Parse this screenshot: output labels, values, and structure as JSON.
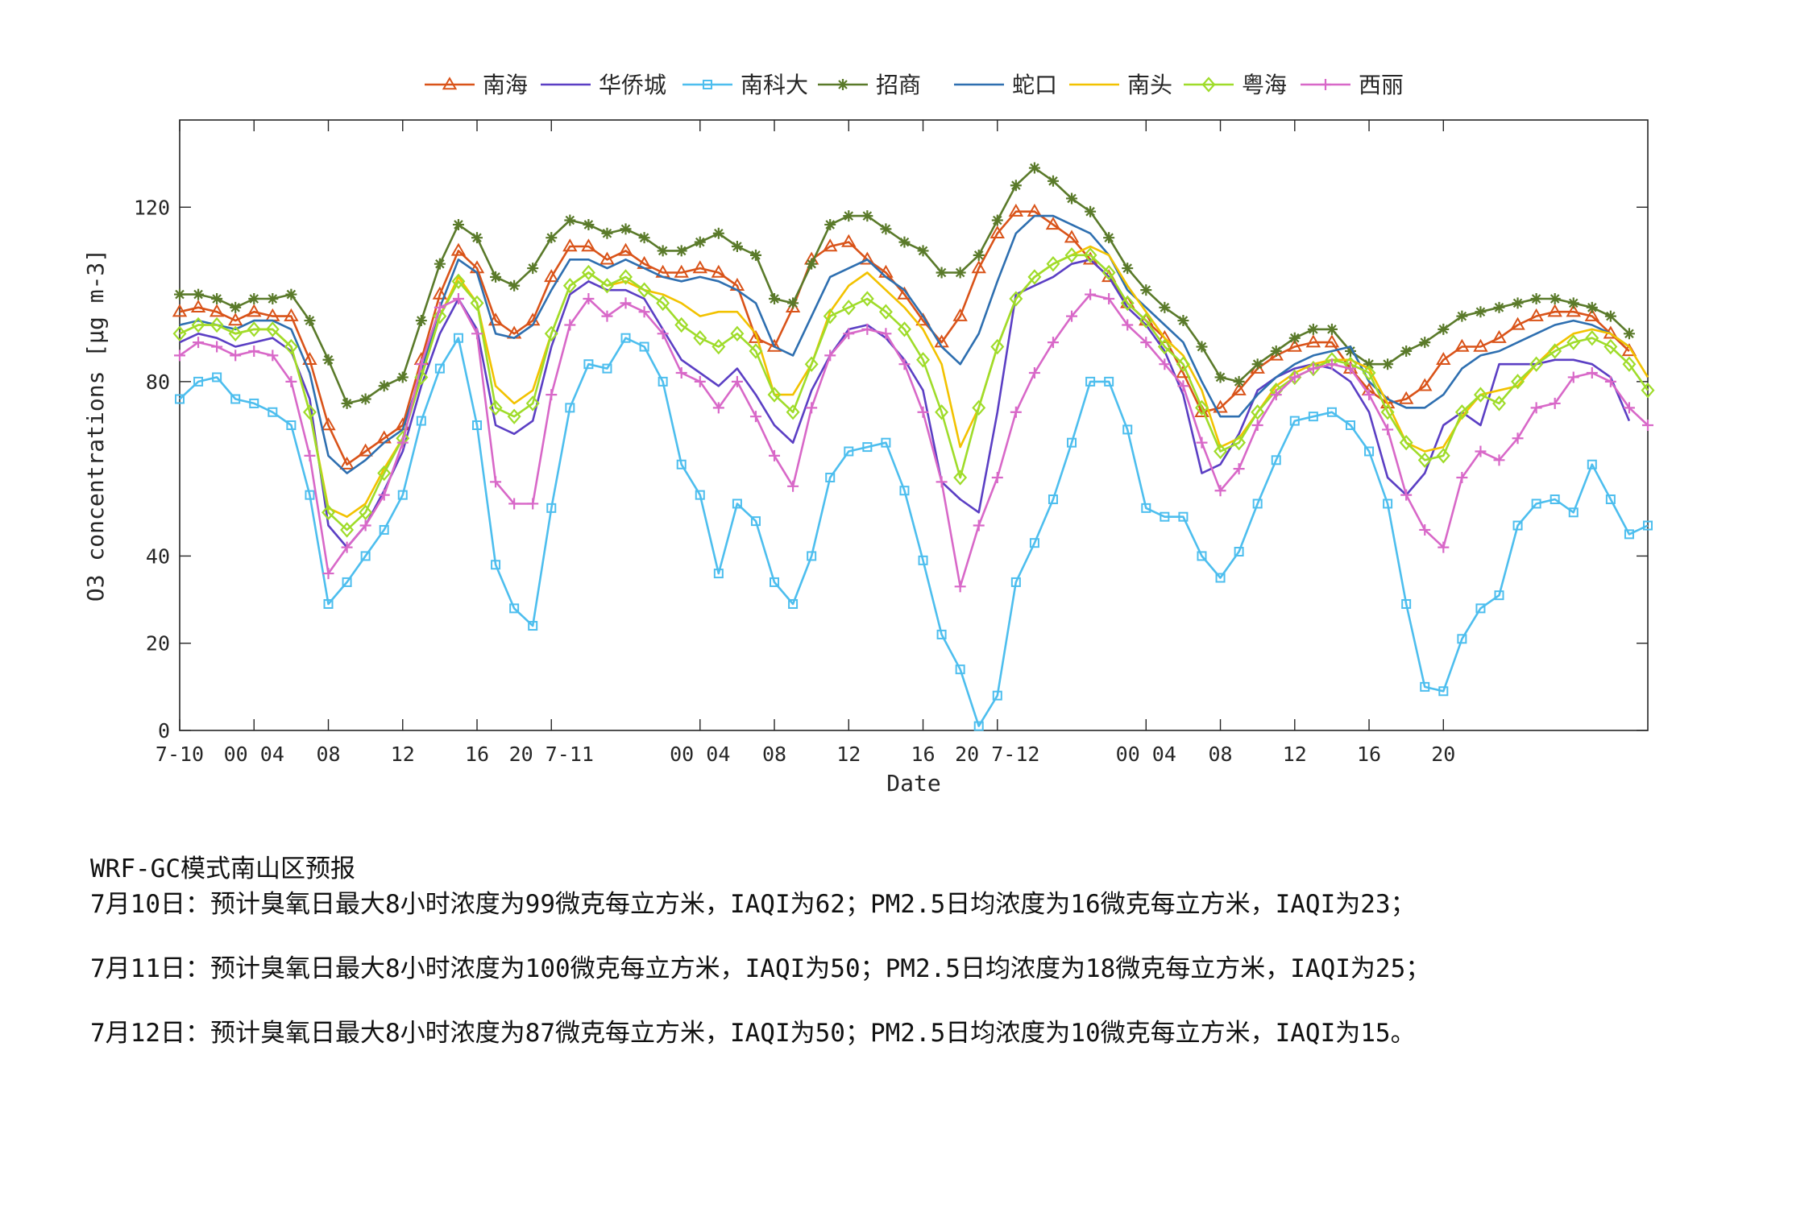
{
  "chart_data": {
    "type": "line",
    "xlabel": "Date",
    "ylabel": "O3 concentrations [μg m-3]",
    "ylim": [
      0,
      140
    ],
    "yticks": [
      0,
      20,
      40,
      80,
      120
    ],
    "x_start": "7-10 00:00",
    "x_step_hours": 1,
    "x_ticks": [
      {
        "hour": 0,
        "label": "7-10"
      },
      {
        "hour": 4,
        "label": "00 04"
      },
      {
        "hour": 8,
        "label": "08"
      },
      {
        "hour": 12,
        "label": "12"
      },
      {
        "hour": 16,
        "label": "16"
      },
      {
        "hour": 20,
        "label": "20 7-11"
      },
      {
        "hour": 28,
        "label": "00 04"
      },
      {
        "hour": 32,
        "label": "08"
      },
      {
        "hour": 36,
        "label": "12"
      },
      {
        "hour": 40,
        "label": "16"
      },
      {
        "hour": 44,
        "label": "20 7-12"
      },
      {
        "hour": 52,
        "label": "00 04"
      },
      {
        "hour": 56,
        "label": "08"
      },
      {
        "hour": 60,
        "label": "12"
      },
      {
        "hour": 64,
        "label": "16"
      },
      {
        "hour": 68,
        "label": "20"
      }
    ],
    "legend_position": "top",
    "series": [
      {
        "name": "南海",
        "color": "#d95319",
        "marker": "triangle",
        "values": [
          96,
          97,
          96,
          94,
          96,
          95,
          95,
          85,
          70,
          61,
          64,
          67,
          70,
          85,
          100,
          110,
          106,
          94,
          91,
          94,
          104,
          111,
          111,
          108,
          110,
          107,
          105,
          105,
          106,
          105,
          102,
          90,
          88,
          97,
          108,
          111,
          112,
          108,
          105,
          100,
          94,
          89,
          95,
          106,
          114,
          119,
          119,
          116,
          113,
          108,
          104,
          98,
          94,
          90,
          82,
          73,
          74,
          78,
          83,
          86,
          88,
          89,
          89,
          83,
          78,
          75,
          76,
          79,
          85,
          88,
          88,
          90,
          93,
          95,
          96,
          96,
          95,
          91,
          87
        ]
      },
      {
        "name": "华侨城",
        "color": "#5b3fc4",
        "marker": "none",
        "values": [
          89,
          91,
          90,
          88,
          89,
          90,
          87,
          76,
          47,
          42,
          47,
          55,
          64,
          79,
          91,
          99,
          92,
          70,
          68,
          71,
          88,
          100,
          103,
          101,
          101,
          99,
          92,
          85,
          82,
          79,
          83,
          77,
          70,
          66,
          78,
          86,
          92,
          93,
          90,
          85,
          78,
          57,
          53,
          50,
          73,
          100,
          102,
          104,
          107,
          108,
          104,
          97,
          93,
          87,
          77,
          59,
          61,
          68,
          78,
          81,
          83,
          84,
          83,
          80,
          73,
          58,
          54,
          59,
          70,
          73,
          70,
          84,
          84,
          84,
          85,
          85,
          84,
          81,
          71
        ]
      },
      {
        "name": "南科大",
        "color": "#4dbeee",
        "marker": "square",
        "values": [
          76,
          80,
          81,
          76,
          75,
          73,
          70,
          54,
          29,
          34,
          40,
          46,
          54,
          71,
          83,
          90,
          70,
          38,
          28,
          24,
          51,
          74,
          84,
          83,
          90,
          88,
          80,
          61,
          54,
          36,
          52,
          48,
          34,
          29,
          40,
          58,
          64,
          65,
          66,
          55,
          39,
          22,
          14,
          1,
          8,
          34,
          43,
          53,
          66,
          80,
          80,
          69,
          51,
          49,
          49,
          40,
          35,
          41,
          52,
          62,
          71,
          72,
          73,
          70,
          64,
          52,
          29,
          10,
          9,
          21,
          28,
          31,
          47,
          52,
          53,
          50,
          61,
          53,
          45,
          47
        ]
      },
      {
        "name": "招商",
        "color": "#5a7a2a",
        "marker": "star",
        "values": [
          100,
          100,
          99,
          97,
          99,
          99,
          100,
          94,
          85,
          75,
          76,
          79,
          81,
          94,
          107,
          116,
          113,
          104,
          102,
          106,
          113,
          117,
          116,
          114,
          115,
          113,
          110,
          110,
          112,
          114,
          111,
          109,
          99,
          98,
          107,
          116,
          118,
          118,
          115,
          112,
          110,
          105,
          105,
          109,
          117,
          125,
          129,
          126,
          122,
          119,
          113,
          106,
          101,
          97,
          94,
          88,
          81,
          80,
          84,
          87,
          90,
          92,
          92,
          87,
          84,
          84,
          87,
          89,
          92,
          95,
          96,
          97,
          98,
          99,
          99,
          98,
          97,
          95,
          91
        ]
      },
      {
        "name": "蛇口",
        "color": "#2e6fb0",
        "marker": "none",
        "values": [
          93,
          94,
          93,
          92,
          94,
          94,
          92,
          82,
          63,
          59,
          62,
          66,
          69,
          82,
          97,
          108,
          105,
          91,
          90,
          93,
          101,
          108,
          108,
          106,
          108,
          106,
          104,
          103,
          104,
          103,
          101,
          98,
          88,
          86,
          95,
          104,
          106,
          108,
          104,
          101,
          95,
          88,
          84,
          91,
          103,
          114,
          118,
          118,
          116,
          114,
          109,
          101,
          97,
          93,
          89,
          80,
          72,
          72,
          77,
          81,
          84,
          86,
          87,
          88,
          80,
          76,
          74,
          74,
          77,
          83,
          86,
          87,
          89,
          91,
          93,
          94,
          93,
          91,
          88
        ]
      },
      {
        "name": "南头",
        "color": "#f2c200",
        "marker": "none",
        "values": [
          91,
          93,
          93,
          91,
          92,
          92,
          88,
          73,
          51,
          49,
          52,
          60,
          67,
          81,
          95,
          104,
          98,
          79,
          75,
          78,
          91,
          102,
          105,
          102,
          103,
          101,
          100,
          98,
          95,
          96,
          96,
          91,
          77,
          77,
          84,
          96,
          102,
          105,
          101,
          97,
          92,
          84,
          65,
          74,
          88,
          99,
          104,
          107,
          109,
          111,
          109,
          102,
          96,
          90,
          86,
          78,
          65,
          67,
          73,
          79,
          82,
          84,
          85,
          85,
          83,
          75,
          66,
          64,
          65,
          72,
          77,
          78,
          79,
          84,
          88,
          91,
          92,
          91,
          88,
          81
        ]
      },
      {
        "name": "粤海",
        "color": "#9fdc2a",
        "marker": "diamond",
        "values": [
          91,
          93,
          93,
          91,
          92,
          92,
          88,
          73,
          50,
          46,
          50,
          59,
          67,
          81,
          95,
          103,
          98,
          74,
          72,
          75,
          91,
          102,
          105,
          102,
          104,
          101,
          98,
          93,
          90,
          88,
          91,
          87,
          77,
          73,
          84,
          95,
          97,
          99,
          96,
          92,
          85,
          73,
          58,
          74,
          88,
          99,
          104,
          107,
          109,
          109,
          105,
          98,
          94,
          88,
          84,
          74,
          64,
          66,
          73,
          78,
          81,
          83,
          85,
          84,
          82,
          73,
          66,
          62,
          63,
          73,
          77,
          75,
          80,
          84,
          87,
          89,
          90,
          88,
          84,
          78
        ]
      },
      {
        "name": "西丽",
        "color": "#d868c8",
        "marker": "plus",
        "values": [
          86,
          89,
          88,
          86,
          87,
          86,
          80,
          63,
          36,
          42,
          47,
          54,
          66,
          84,
          97,
          99,
          91,
          57,
          52,
          52,
          77,
          93,
          99,
          95,
          98,
          96,
          91,
          82,
          80,
          74,
          80,
          72,
          63,
          56,
          74,
          86,
          91,
          92,
          91,
          84,
          73,
          57,
          33,
          47,
          58,
          73,
          82,
          89,
          95,
          100,
          99,
          93,
          89,
          84,
          79,
          66,
          55,
          60,
          70,
          77,
          81,
          83,
          84,
          83,
          77,
          69,
          54,
          46,
          42,
          58,
          64,
          62,
          67,
          74,
          75,
          81,
          82,
          80,
          74,
          70
        ]
      }
    ]
  },
  "legend": [
    "南海",
    "华侨城",
    "南科大",
    "招商",
    "蛇口",
    "南头",
    "粤海",
    "西丽"
  ],
  "forecast": {
    "title": "WRF-GC模式南山区预报",
    "lines": [
      "7月10日：预计臭氧日最大8小时浓度为99微克每立方米，IAQI为62；PM2.5日均浓度为16微克每立方米，IAQI为23；",
      "7月11日：预计臭氧日最大8小时浓度为100微克每立方米，IAQI为50；PM2.5日均浓度为18微克每立方米，IAQI为25；",
      "7月12日：预计臭氧日最大8小时浓度为87微克每立方米，IAQI为50；PM2.5日均浓度为10微克每立方米，IAQI为15。"
    ]
  }
}
